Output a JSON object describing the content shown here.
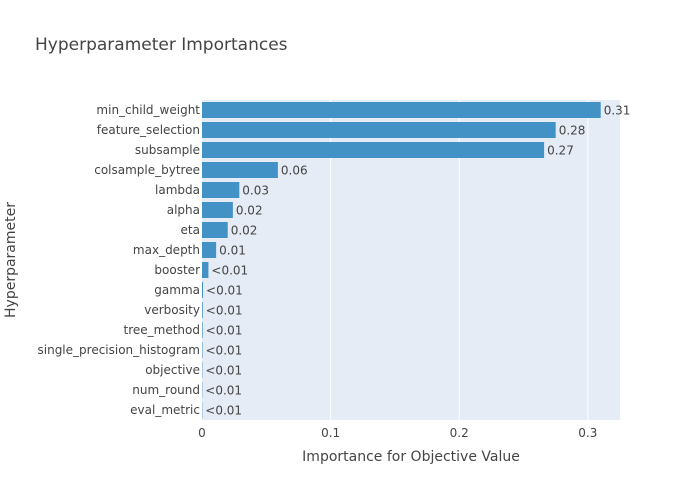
{
  "chart_data": {
    "type": "bar",
    "orientation": "horizontal",
    "title": "Hyperparameter Importances",
    "xlabel": "Importance for Objective Value",
    "ylabel": "Hyperparameter",
    "xlim": [
      0,
      0.325
    ],
    "x_ticks": [
      0,
      0.1,
      0.2,
      0.3
    ],
    "x_tick_labels": [
      "0",
      "0.1",
      "0.2",
      "0.3"
    ],
    "grid": true,
    "bar_color": "#4292c6",
    "plot_bg_color": "#e5ecf6",
    "categories": [
      "min_child_weight",
      "feature_selection",
      "subsample",
      "colsample_bytree",
      "lambda",
      "alpha",
      "eta",
      "max_depth",
      "booster",
      "gamma",
      "verbosity",
      "tree_method",
      "single_precision_histogram",
      "objective",
      "num_round",
      "eval_metric"
    ],
    "values": [
      0.31,
      0.275,
      0.266,
      0.059,
      0.029,
      0.024,
      0.02,
      0.011,
      0.005,
      0.0008,
      0.0006,
      0.0005,
      0.0004,
      0.0003,
      0.0002,
      0.0001
    ],
    "value_labels": [
      "0.31",
      "0.28",
      "0.27",
      "0.06",
      "0.03",
      "0.02",
      "0.02",
      "0.01",
      "<0.01",
      "<0.01",
      "<0.01",
      "<0.01",
      "<0.01",
      "<0.01",
      "<0.01",
      "<0.01"
    ]
  }
}
